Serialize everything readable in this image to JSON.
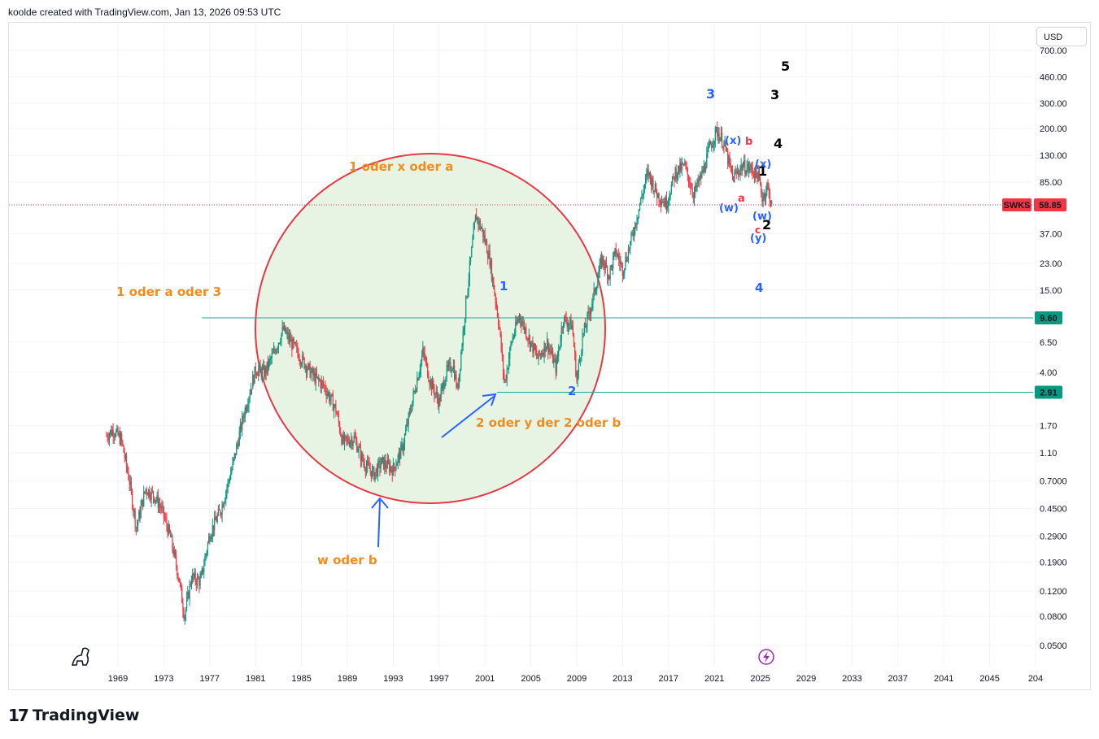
{
  "header": {
    "credit": "koolde created with TradingView.com, Jan 13, 2026 09:53 UTC"
  },
  "currency": "USD",
  "footer": {
    "brand_mark": "17",
    "brand_name": "TradingView"
  },
  "colors": {
    "up": "#089981",
    "down": "#f23645",
    "circle_stroke": "#e53946",
    "circle_fill": "#e8f4e3",
    "orange": "#f08c1d",
    "blue": "#2962ff",
    "teal": "#22ab94",
    "price_tag": "#f23645"
  },
  "chart_data": {
    "type": "candlestick",
    "symbol": "SWKS",
    "last_price": "58.85",
    "scale": "log",
    "x_tick_labels": [
      "1969",
      "1973",
      "1977",
      "1981",
      "1985",
      "1989",
      "1993",
      "1997",
      "2001",
      "2005",
      "2009",
      "2013",
      "2017",
      "2021",
      "2025",
      "2029",
      "2033",
      "2037",
      "2041",
      "2045",
      "204"
    ],
    "y_tick_labels": [
      "700.00",
      "460.00",
      "300.00",
      "200.00",
      "130.00",
      "85.00",
      "58.85",
      "37.00",
      "23.00",
      "15.00",
      "9.60",
      "6.50",
      "4.00",
      "2.91",
      "1.70",
      "1.10",
      "0.7000",
      "0.4500",
      "0.2900",
      "0.1900",
      "0.1200",
      "0.0800",
      "0.0500"
    ],
    "horizontal_lines": [
      {
        "value": 9.6,
        "label": "9.60"
      },
      {
        "value": 2.91,
        "label": "2.91"
      }
    ],
    "price_path": [
      [
        1968.0,
        1.45
      ],
      [
        1968.6,
        1.6
      ],
      [
        1969.3,
        1.35
      ],
      [
        1970.0,
        0.7
      ],
      [
        1970.6,
        0.33
      ],
      [
        1971.4,
        0.62
      ],
      [
        1972.2,
        0.55
      ],
      [
        1972.8,
        0.45
      ],
      [
        1973.6,
        0.28
      ],
      [
        1974.3,
        0.15
      ],
      [
        1974.8,
        0.08
      ],
      [
        1975.4,
        0.15
      ],
      [
        1976.2,
        0.14
      ],
      [
        1977.0,
        0.3
      ],
      [
        1978.0,
        0.45
      ],
      [
        1979.0,
        0.9
      ],
      [
        1980.0,
        2.1
      ],
      [
        1981.0,
        4.2
      ],
      [
        1981.8,
        4.0
      ],
      [
        1982.6,
        5.5
      ],
      [
        1983.4,
        8.0
      ],
      [
        1984.2,
        6.3
      ],
      [
        1985.0,
        5.0
      ],
      [
        1986.0,
        3.8
      ],
      [
        1987.0,
        3.2
      ],
      [
        1988.0,
        2.2
      ],
      [
        1988.6,
        1.3
      ],
      [
        1989.6,
        1.4
      ],
      [
        1990.4,
        0.95
      ],
      [
        1991.3,
        0.78
      ],
      [
        1992.0,
        0.95
      ],
      [
        1993.0,
        0.85
      ],
      [
        1993.8,
        1.2
      ],
      [
        1994.6,
        2.4
      ],
      [
        1995.6,
        5.6
      ],
      [
        1996.2,
        3.5
      ],
      [
        1997.0,
        2.5
      ],
      [
        1997.6,
        4.0
      ],
      [
        1998.2,
        4.6
      ],
      [
        1998.6,
        3.0
      ],
      [
        1999.4,
        14.0
      ],
      [
        2000.2,
        50.0
      ],
      [
        2000.8,
        38.0
      ],
      [
        2001.4,
        25.0
      ],
      [
        2002.2,
        9.0
      ],
      [
        2002.7,
        3.3
      ],
      [
        2003.3,
        6.5
      ],
      [
        2004.0,
        10.0
      ],
      [
        2004.8,
        7.0
      ],
      [
        2005.6,
        5.0
      ],
      [
        2006.4,
        6.5
      ],
      [
        2007.2,
        4.3
      ],
      [
        2007.8,
        9.5
      ],
      [
        2008.6,
        8.5
      ],
      [
        2009.0,
        3.5
      ],
      [
        2009.5,
        7.0
      ],
      [
        2010.4,
        13.0
      ],
      [
        2011.2,
        25.0
      ],
      [
        2011.8,
        19.0
      ],
      [
        2012.4,
        28.0
      ],
      [
        2013.0,
        21.0
      ],
      [
        2013.6,
        30.0
      ],
      [
        2014.4,
        55.0
      ],
      [
        2015.2,
        100.0
      ],
      [
        2016.0,
        70.0
      ],
      [
        2016.8,
        60.0
      ],
      [
        2017.6,
        100.0
      ],
      [
        2018.4,
        110.0
      ],
      [
        2019.2,
        70.0
      ],
      [
        2020.0,
        100.0
      ],
      [
        2020.6,
        150.0
      ],
      [
        2021.2,
        195.0
      ],
      [
        2021.8,
        160.0
      ],
      [
        2022.6,
        90.0
      ],
      [
        2023.4,
        110.0
      ],
      [
        2024.2,
        105.0
      ],
      [
        2024.8,
        95.0
      ],
      [
        2025.2,
        65.0
      ],
      [
        2025.6,
        80.0
      ],
      [
        2026.0,
        58.85
      ]
    ],
    "annotations": [
      {
        "text": "1 oder x oder a",
        "color": "orange"
      },
      {
        "text": "1 oder a oder 3",
        "color": "orange"
      },
      {
        "text": "2 oder y der 2 oder b",
        "color": "orange"
      },
      {
        "text": "w oder b",
        "color": "orange"
      },
      {
        "text": "1",
        "color": "blue"
      },
      {
        "text": "2",
        "color": "blue"
      },
      {
        "text": "3",
        "color": "blue"
      },
      {
        "text": "4",
        "color": "blue"
      },
      {
        "text": "(x)",
        "color": "blue"
      },
      {
        "text": "(x)",
        "color": "blue"
      },
      {
        "text": "(w)",
        "color": "blue"
      },
      {
        "text": "(w)",
        "color": "blue"
      },
      {
        "text": "(y)",
        "color": "blue"
      },
      {
        "text": "b",
        "color": "red"
      },
      {
        "text": "a",
        "color": "red"
      },
      {
        "text": "c",
        "color": "red"
      },
      {
        "text": "5",
        "color": "black"
      },
      {
        "text": "3",
        "color": "black"
      },
      {
        "text": "4",
        "color": "black"
      },
      {
        "text": "1",
        "color": "black"
      },
      {
        "text": "2",
        "color": "black"
      }
    ]
  }
}
